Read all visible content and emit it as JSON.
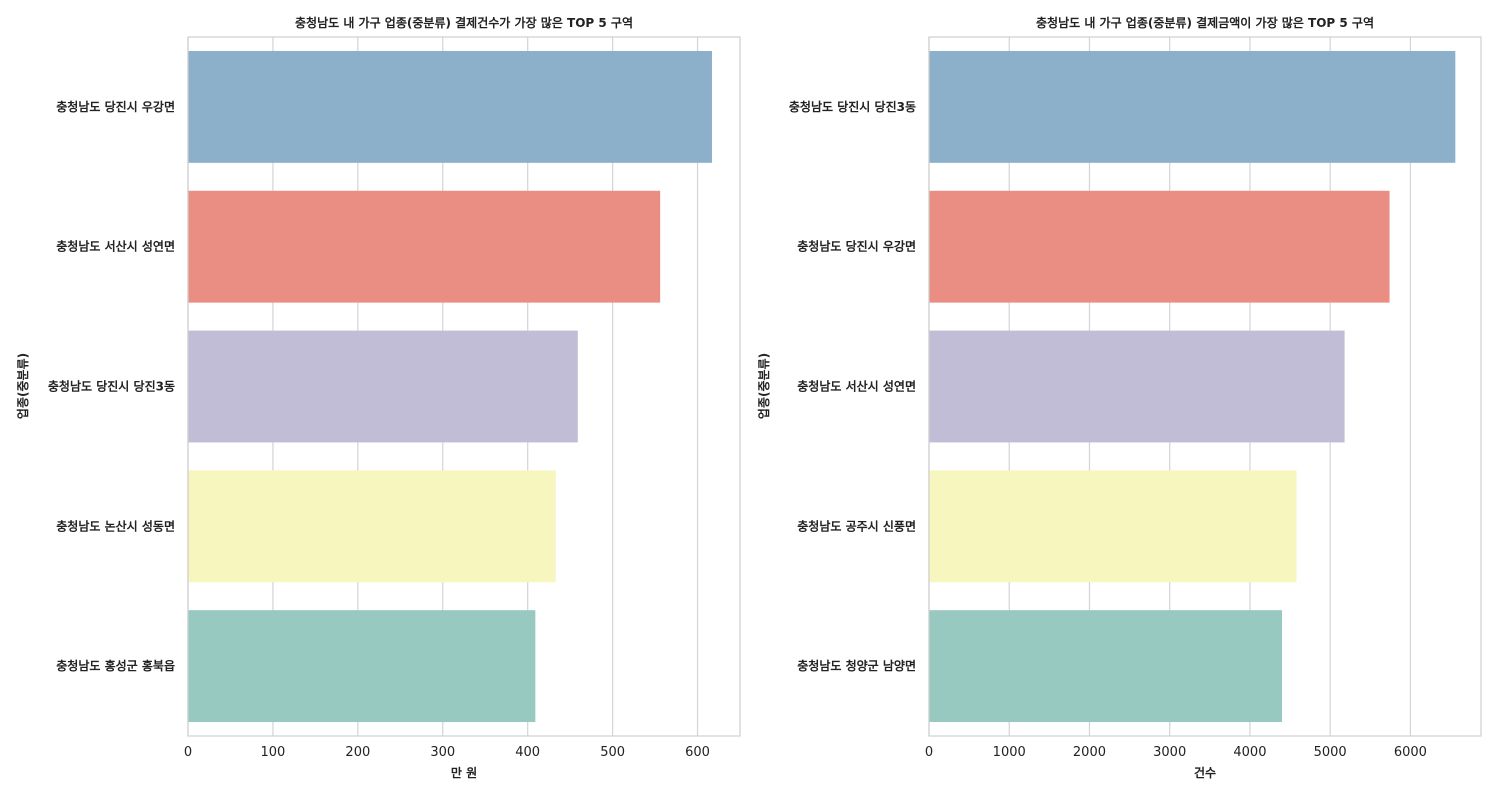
{
  "chart_data": [
    {
      "type": "bar",
      "orientation": "horizontal",
      "title": "충청남도 내 가구 업종(중분류) 결제건수가 가장 많은 TOP 5 구역",
      "xlabel": "만 원",
      "ylabel": "업종(중분류)",
      "categories": [
        "충청남도 당진시 우강면",
        "충청남도 서산시 성연면",
        "충청남도 당진시 당진3동",
        "충청남도 논산시 성동면",
        "충청남도 홍성군 홍북읍"
      ],
      "values": [
        617,
        556,
        459,
        433,
        409
      ],
      "xlim": [
        0,
        650
      ],
      "xticks": [
        "0",
        "100",
        "200",
        "300",
        "400",
        "500",
        "600"
      ],
      "xtick_values": [
        0,
        100,
        200,
        300,
        400,
        500,
        600
      ],
      "colors": [
        "#8cb0c9",
        "#ea8e83",
        "#c1bdd6",
        "#f6f6be",
        "#98c9c1"
      ],
      "grid": true
    },
    {
      "type": "bar",
      "orientation": "horizontal",
      "title": "충청남도 내 가구 업종(중분류) 결제금액이 가장 많은 TOP 5 구역",
      "xlabel": "건수",
      "ylabel": "업종(중분류)",
      "categories": [
        "충청남도 당진시 당진3동",
        "충청남도 당진시 우강면",
        "충청남도 서산시 성연면",
        "충청남도 공주시 신풍면",
        "충청남도 청양군 남양면"
      ],
      "values": [
        6560,
        5740,
        5180,
        4580,
        4400
      ],
      "xlim": [
        0,
        6880
      ],
      "xticks": [
        "0",
        "1000",
        "2000",
        "3000",
        "4000",
        "5000",
        "6000"
      ],
      "xtick_values": [
        0,
        1000,
        2000,
        3000,
        4000,
        5000,
        6000
      ],
      "colors": [
        "#8cb0c9",
        "#ea8e83",
        "#c1bdd6",
        "#f6f6be",
        "#98c9c1"
      ],
      "grid": true
    }
  ]
}
